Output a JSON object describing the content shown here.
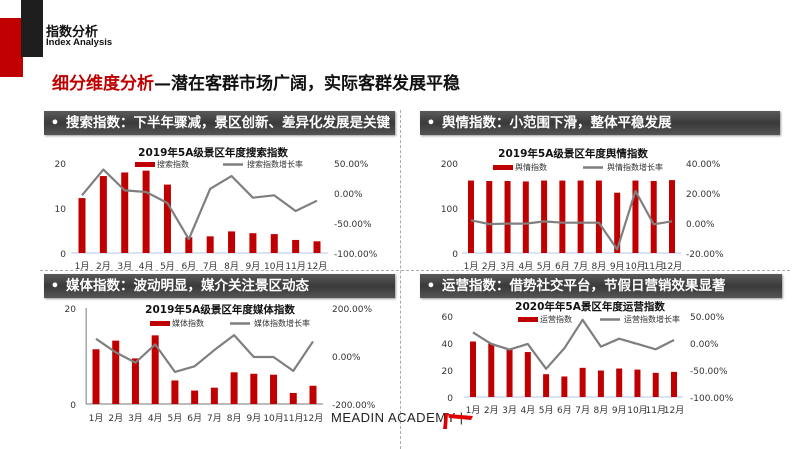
{
  "header": {
    "section_cn": "指数分析",
    "section_en": "Index Analysis",
    "title_highlight": "细分维度分析",
    "title_rest": "—潜在客群市场广阔，实际客群发展平稳"
  },
  "panels": [
    {
      "bullet": "•",
      "heading": "搜索指数：下半年骤减，景区创新、差异化发展是关键"
    },
    {
      "bullet": "•",
      "heading": "舆情指数：小范围下滑，整体平稳发展"
    },
    {
      "bullet": "•",
      "heading": "媒体指数：波动明显，媒介关注景区动态"
    },
    {
      "bullet": "•",
      "heading": "运营指数：借势社交平台，节假日营销效果显著"
    }
  ],
  "footer": {
    "brand": "MEADIN ACADEMY |",
    "logo_text": "迈点研究院"
  },
  "colors": {
    "accent": "#c00000",
    "line": "#7f7f7f",
    "dark": "#1e1e1e"
  },
  "chart_data": [
    {
      "type": "bar",
      "title": "2019年5A级景区年度搜索指数",
      "categories": [
        "1月",
        "2月",
        "3月",
        "4月",
        "5月",
        "6月",
        "7月",
        "8月",
        "9月",
        "10月",
        "11月",
        "12月"
      ],
      "series": [
        {
          "name": "搜索指数",
          "type": "bar",
          "axis": "left",
          "values": [
            12.2,
            17.1,
            17.9,
            18.3,
            15.2,
            3.5,
            3.7,
            4.8,
            4.4,
            4.2,
            2.9,
            2.6
          ]
        },
        {
          "name": "搜索指数增长率",
          "type": "line",
          "axis": "right",
          "values": [
            -3.9,
            39,
            4.4,
            1.7,
            -16.7,
            -77,
            7,
            28.3,
            -7.8,
            -3.9,
            -30,
            -12.8
          ]
        }
      ],
      "left_ticks": [
        "0",
        "10",
        "20"
      ],
      "left_range": [
        0,
        20
      ],
      "right_ticks": [
        "-100.00%",
        "-50.00%",
        "0.00%",
        "50.00%"
      ],
      "right_range": [
        -100,
        50
      ]
    },
    {
      "type": "bar",
      "title": "2019年5A级景区年度舆情指数",
      "categories": [
        "1月",
        "2月",
        "3月",
        "4月",
        "5月",
        "6月",
        "7月",
        "8月",
        "9月",
        "10月",
        "11月",
        "12月"
      ],
      "series": [
        {
          "name": "舆情指数",
          "type": "bar",
          "axis": "left",
          "values": [
            161,
            160,
            160,
            159,
            161,
            161,
            161,
            161,
            134,
            161,
            160,
            162
          ]
        },
        {
          "name": "舆情指数增长率",
          "type": "line",
          "axis": "right",
          "values": [
            1.8,
            -0.7,
            -0.4,
            -0.4,
            1.1,
            0.2,
            0.2,
            0.2,
            -17.6,
            21.3,
            -0.9,
            1.1
          ]
        }
      ],
      "left_ticks": [
        "0",
        "100",
        "200"
      ],
      "left_range": [
        0,
        200
      ],
      "right_ticks": [
        "-20.00%",
        "0.00%",
        "20.00%",
        "40.00%"
      ],
      "right_range": [
        -20,
        40
      ]
    },
    {
      "type": "bar",
      "title": "2019年5A级景区年度媒体指数",
      "categories": [
        "1月",
        "2月",
        "3月",
        "4月",
        "5月",
        "6月",
        "7月",
        "8月",
        "9月",
        "10月",
        "11月",
        "12月"
      ],
      "series": [
        {
          "name": "媒体指数",
          "type": "bar",
          "axis": "left",
          "values": [
            11.4,
            13.2,
            9.5,
            14.3,
            4.9,
            2.8,
            3.4,
            6.6,
            6.3,
            6.1,
            2.3,
            3.8
          ]
        },
        {
          "name": "媒体指数增长率",
          "type": "line",
          "axis": "right",
          "values": [
            71.7,
            15.2,
            -27.6,
            48.3,
            -66.2,
            -42.8,
            24.8,
            86.9,
            -4.1,
            -4.1,
            -62.1,
            60.7
          ]
        }
      ],
      "left_ticks": [
        "0",
        "20"
      ],
      "left_range": [
        0,
        20
      ],
      "right_ticks": [
        "-200.00%",
        "0.00%",
        "200.00%"
      ],
      "right_range": [
        -200,
        200
      ]
    },
    {
      "type": "bar",
      "title": "2020年年5A景区年度运营指数",
      "categories": [
        "1月",
        "2月",
        "3月",
        "4月",
        "5月",
        "6月",
        "7月",
        "8月",
        "9月",
        "10月",
        "11月",
        "12月"
      ],
      "series": [
        {
          "name": "运营指数",
          "type": "bar",
          "axis": "left",
          "values": [
            41.1,
            39.7,
            35.3,
            33.3,
            16.9,
            15.2,
            21.6,
            19.6,
            21.1,
            20.3,
            17.9,
            18.6
          ]
        },
        {
          "name": "运营指数增长率",
          "type": "line",
          "axis": "right",
          "values": [
            19.6,
            -1.8,
            -12.2,
            -1.8,
            -47.8,
            -9.8,
            42.9,
            -6.7,
            8,
            -1.8,
            -11.6,
            5.5
          ]
        }
      ],
      "left_ticks": [
        "0",
        "20",
        "40",
        "60"
      ],
      "left_range": [
        0,
        60
      ],
      "right_ticks": [
        "-100.00%",
        "-50.00%",
        "0.00%",
        "50.00%"
      ],
      "right_range": [
        -100,
        50
      ]
    }
  ]
}
